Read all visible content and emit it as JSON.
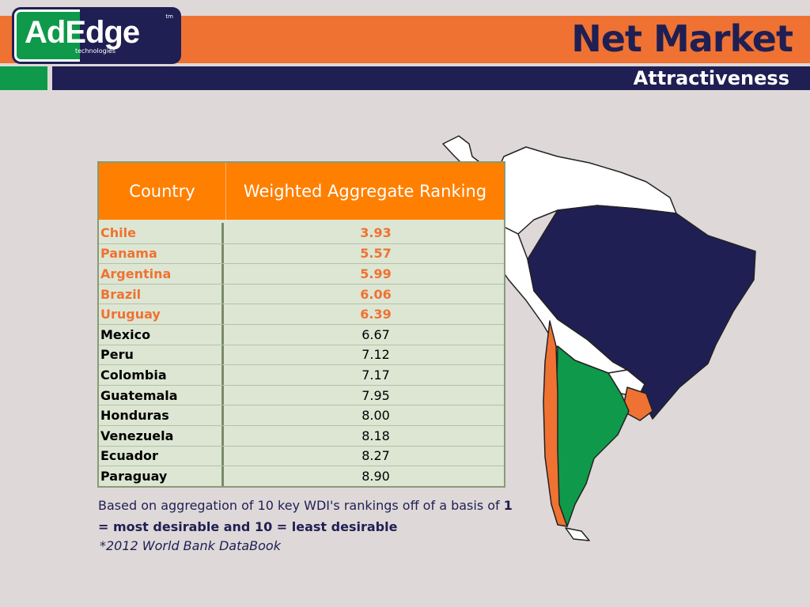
{
  "header": {
    "logo_text": "AdEdge",
    "logo_sub": "technologies",
    "logo_tm": "tm",
    "title": "Net Market",
    "subtitle": "Attractiveness"
  },
  "table": {
    "headers": [
      "Country",
      "Weighted Aggregate Ranking"
    ],
    "rows": [
      {
        "country": "Chile",
        "value": "3.93",
        "highlight": true
      },
      {
        "country": "Panama",
        "value": "5.57",
        "highlight": true
      },
      {
        "country": "Argentina",
        "value": "5.99",
        "highlight": true
      },
      {
        "country": "Brazil",
        "value": "6.06",
        "highlight": true
      },
      {
        "country": "Uruguay",
        "value": "6.39",
        "highlight": true
      },
      {
        "country": "Mexico",
        "value": "6.67",
        "highlight": false
      },
      {
        "country": "Peru",
        "value": "7.12",
        "highlight": false
      },
      {
        "country": "Colombia",
        "value": "7.17",
        "highlight": false
      },
      {
        "country": "Guatemala",
        "value": "7.95",
        "highlight": false
      },
      {
        "country": "Honduras",
        "value": "8.00",
        "highlight": false
      },
      {
        "country": "Venezuela",
        "value": "8.18",
        "highlight": false
      },
      {
        "country": "Ecuador",
        "value": "8.27",
        "highlight": false
      },
      {
        "country": "Paraguay",
        "value": "8.90",
        "highlight": false
      }
    ]
  },
  "note": {
    "line1": "Based on aggregation of 10 key WDI's rankings off of a basis of ",
    "bold": "1 = most desirable and 10 = least desirable",
    "source": "*2012 World Bank DataBook"
  },
  "colors": {
    "orange": "#ef7232",
    "navy": "#1f1f54",
    "green": "#0e9a4a",
    "table_header": "#ff7f00"
  }
}
